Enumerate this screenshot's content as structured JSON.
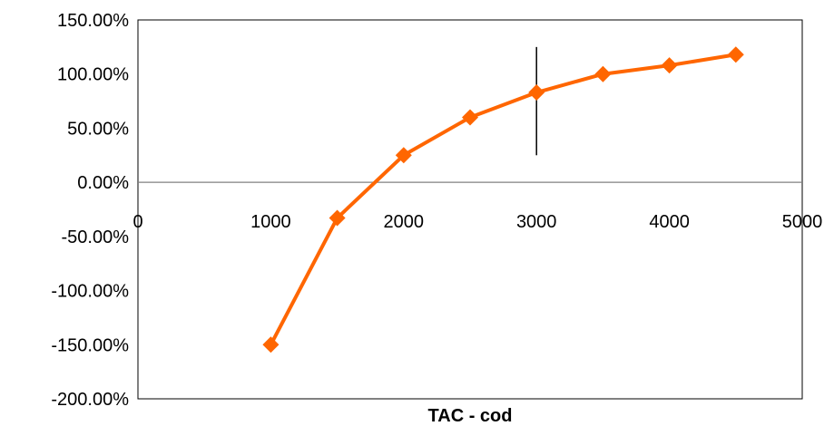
{
  "chart_data": {
    "type": "line",
    "title": "",
    "xlabel": "TAC - cod",
    "ylabel": "",
    "xlim": [
      0,
      5000
    ],
    "ylim": [
      -200,
      150
    ],
    "x_ticks": [
      0,
      1000,
      2000,
      3000,
      4000,
      5000
    ],
    "x_tick_labels": [
      "0",
      "1000",
      "2000",
      "3000",
      "4000",
      "5000"
    ],
    "y_ticks": [
      150,
      100,
      50,
      0,
      -50,
      -100,
      -150,
      -200
    ],
    "y_tick_labels": [
      "150.00%",
      "100.00%",
      "50.00%",
      "0.00%",
      "-50.00%",
      "-100.00%",
      "-150.00%",
      "-200.00%"
    ],
    "grid": false,
    "legend": "none",
    "series": [
      {
        "x": [
          1000,
          1500,
          2000,
          2500,
          3000,
          3500,
          4000,
          4500
        ],
        "values": [
          -150,
          -33,
          25,
          60,
          83,
          100,
          108,
          118
        ],
        "color": "#FF6600",
        "marker": "diamond"
      }
    ],
    "annotations": [
      {
        "type": "vertical-line",
        "x": 3000,
        "y_from": 25,
        "y_to": 125,
        "color": "#000000"
      }
    ]
  }
}
